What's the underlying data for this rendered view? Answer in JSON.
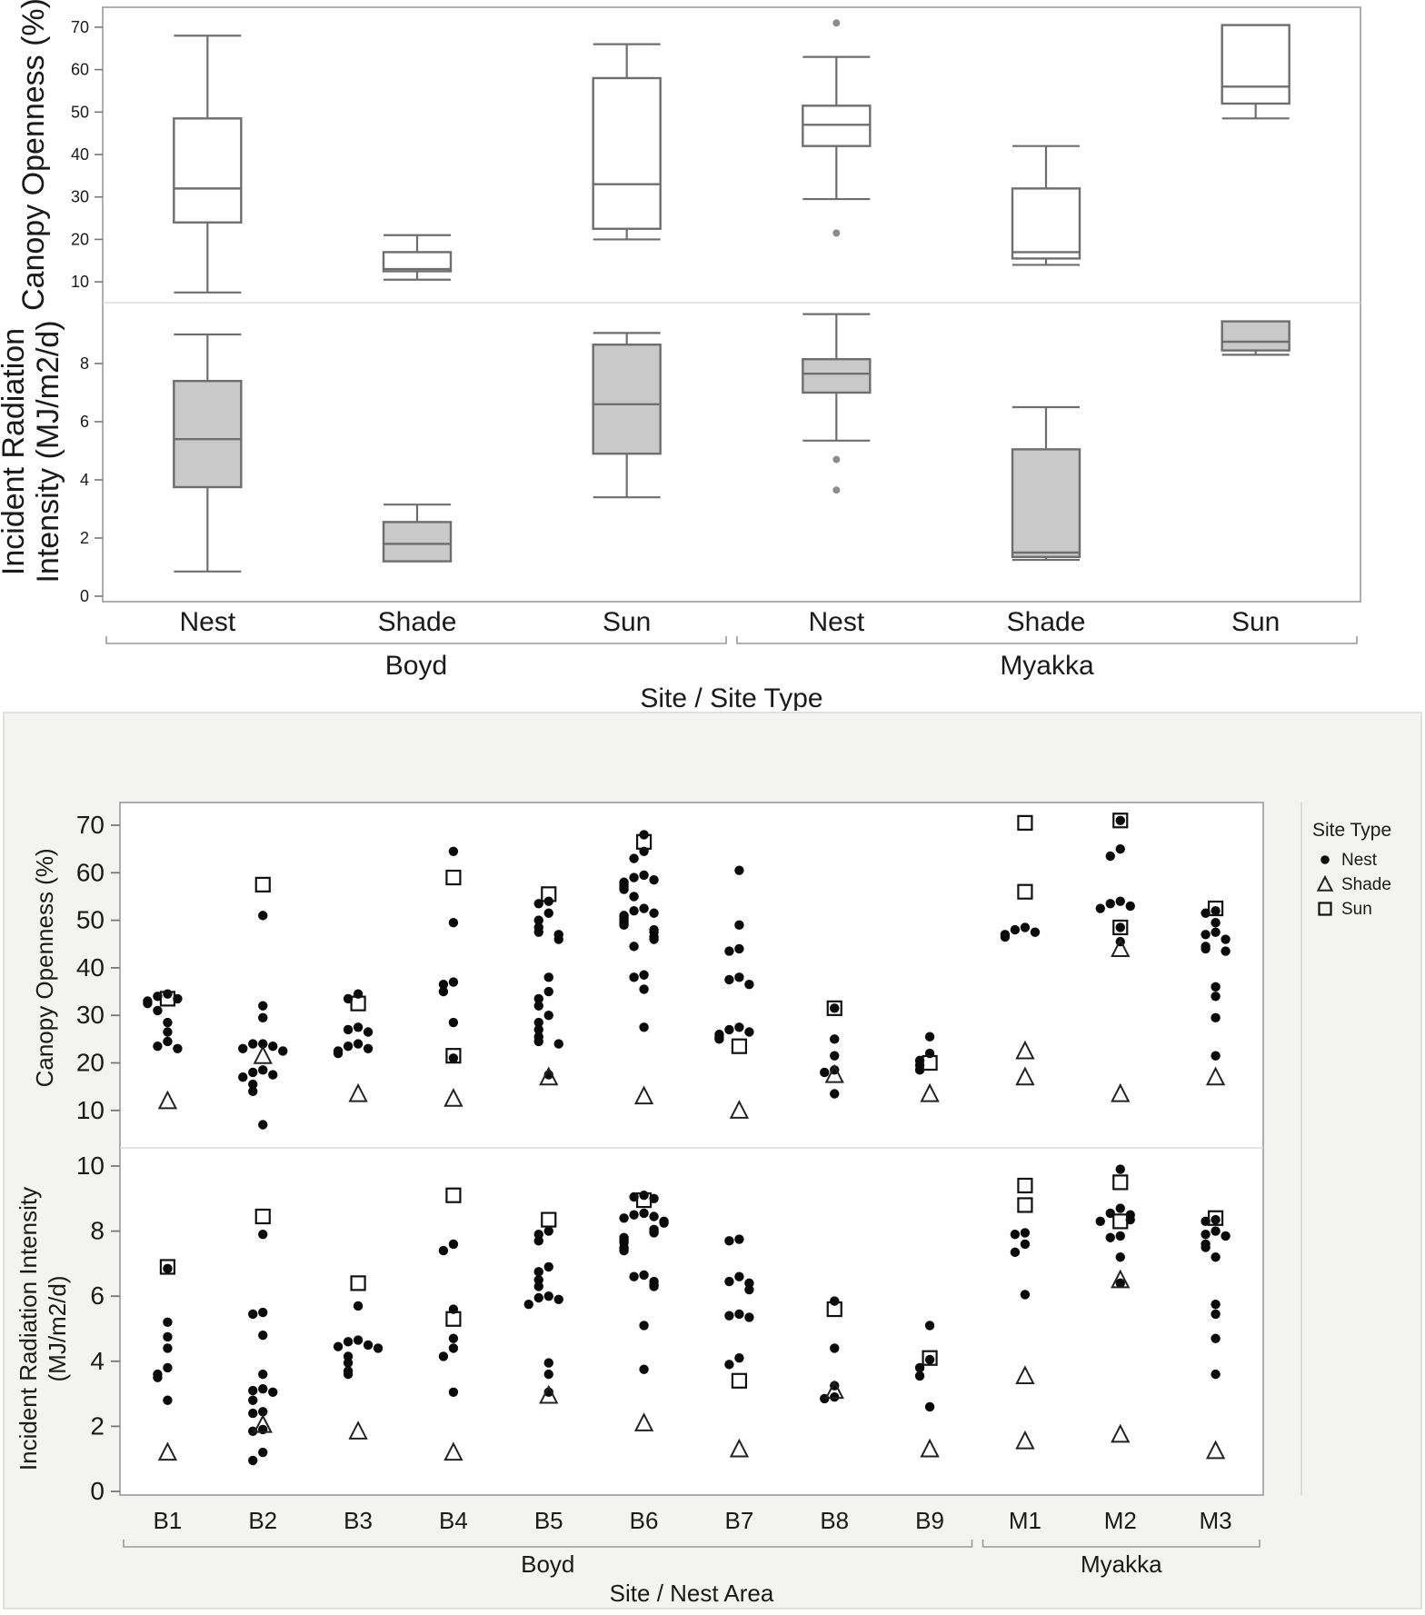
{
  "colors": {
    "plot_border": "#9a9a9a",
    "box_stroke": "#6e6e6e",
    "box_fill_white": "#ffffff",
    "box_fill_gray": "#c9c9c9",
    "row_divider": "#dcdcdc",
    "card_bg": "#f3f3f1",
    "card_border": "#d8d8d8",
    "marker_black": "#0a0a0a",
    "outlier_gray": "#8c8c8c",
    "text": "#1a1a1a"
  },
  "chart_data": [
    {
      "id": "box-plot-figure",
      "type": "box",
      "xlabel": "Site / Site Type",
      "groups": [
        {
          "label": "Boyd",
          "categories": [
            "Nest",
            "Shade",
            "Sun"
          ]
        },
        {
          "label": "Myakka",
          "categories": [
            "Nest",
            "Shade",
            "Sun"
          ]
        }
      ],
      "panels": [
        {
          "ylabel_lines": [
            "Canopy Openness (%)"
          ],
          "yticks": [
            10,
            20,
            30,
            40,
            50,
            60,
            70
          ],
          "ylim": [
            5.1,
            74.7
          ],
          "fill": "white",
          "boxes": [
            {
              "group": "Boyd",
              "category": "Nest",
              "whisker_low": 7.5,
              "q1": 24,
              "median": 32,
              "q3": 48.5,
              "whisker_high": 68,
              "outliers": []
            },
            {
              "group": "Boyd",
              "category": "Shade",
              "whisker_low": 10.5,
              "q1": 12.5,
              "median": 13,
              "q3": 17,
              "whisker_high": 21,
              "outliers": []
            },
            {
              "group": "Boyd",
              "category": "Sun",
              "whisker_low": 20,
              "q1": 22.5,
              "median": 33,
              "q3": 58,
              "whisker_high": 66,
              "outliers": []
            },
            {
              "group": "Myakka",
              "category": "Nest",
              "whisker_low": 29.5,
              "q1": 42,
              "median": 47,
              "q3": 51.5,
              "whisker_high": 63,
              "outliers": [
                71,
                21.5
              ]
            },
            {
              "group": "Myakka",
              "category": "Shade",
              "whisker_low": 14,
              "q1": 15.5,
              "median": 17,
              "q3": 32,
              "whisker_high": 42,
              "outliers": []
            },
            {
              "group": "Myakka",
              "category": "Sun",
              "whisker_low": 48.5,
              "q1": 52,
              "median": 56,
              "q3": 70.5,
              "whisker_high": null,
              "outliers": []
            }
          ]
        },
        {
          "ylabel_lines": [
            "Incident Radiation",
            "Intensity (MJ/m2/d)"
          ],
          "yticks": [
            0,
            2,
            4,
            6,
            8
          ],
          "ylim": [
            -0.2,
            10.1
          ],
          "fill": "gray",
          "boxes": [
            {
              "group": "Boyd",
              "category": "Nest",
              "whisker_low": 0.85,
              "q1": 3.75,
              "median": 5.4,
              "q3": 7.4,
              "whisker_high": 9.0,
              "outliers": []
            },
            {
              "group": "Boyd",
              "category": "Shade",
              "whisker_low": null,
              "q1": 1.2,
              "median": 1.8,
              "q3": 2.55,
              "whisker_high": 3.15,
              "outliers": []
            },
            {
              "group": "Boyd",
              "category": "Sun",
              "whisker_low": 3.4,
              "q1": 4.9,
              "median": 6.6,
              "q3": 8.65,
              "whisker_high": 9.05,
              "outliers": []
            },
            {
              "group": "Myakka",
              "category": "Nest",
              "whisker_low": 5.35,
              "q1": 7.0,
              "median": 7.65,
              "q3": 8.15,
              "whisker_high": 9.7,
              "outliers": [
                4.7,
                3.65
              ]
            },
            {
              "group": "Myakka",
              "category": "Shade",
              "whisker_low": 1.25,
              "q1": 1.35,
              "median": 1.5,
              "q3": 5.05,
              "whisker_high": 6.5,
              "outliers": []
            },
            {
              "group": "Myakka",
              "category": "Sun",
              "whisker_low": 8.3,
              "q1": 8.45,
              "median": 8.75,
              "q3": 9.45,
              "whisker_high": null,
              "outliers": []
            }
          ]
        }
      ]
    },
    {
      "id": "dot-plot-figure",
      "type": "scatter",
      "xlabel": "Site / Nest Area",
      "groups": [
        {
          "label": "Boyd",
          "categories": [
            "B1",
            "B2",
            "B3",
            "B4",
            "B5",
            "B6",
            "B7",
            "B8",
            "B9"
          ]
        },
        {
          "label": "Myakka",
          "categories": [
            "M1",
            "M2",
            "M3"
          ]
        }
      ],
      "legend": {
        "title": "Site Type",
        "items": [
          {
            "label": "Nest",
            "marker": "dot"
          },
          {
            "label": "Shade",
            "marker": "triangle"
          },
          {
            "label": "Sun",
            "marker": "square"
          }
        ]
      },
      "panels": [
        {
          "ylabel_lines": [
            "Canopy Openness (%)"
          ],
          "yticks": [
            10,
            20,
            30,
            40,
            50,
            60,
            70
          ],
          "ylim": [
            2,
            75
          ],
          "points": {
            "B1": {
              "nest": [
                34.5,
                34,
                33.5,
                33,
                32.5,
                31,
                28.5,
                26.5,
                24.5,
                23.5,
                23
              ],
              "shade": [
                12
              ],
              "sun": [
                33.5
              ]
            },
            "B2": {
              "nest": [
                51,
                32,
                29.5,
                24,
                24,
                23.5,
                23,
                22.5,
                18.5,
                18,
                17.5,
                17,
                15.5,
                14,
                7
              ],
              "shade": [
                21.5
              ],
              "sun": [
                57.5
              ]
            },
            "B3": {
              "nest": [
                34.5,
                33.5,
                27.5,
                27,
                26.5,
                24,
                23.5,
                23,
                22.5,
                22
              ],
              "shade": [
                13.5
              ],
              "sun": [
                32.5
              ]
            },
            "B4": {
              "nest": [
                64.5,
                49.5,
                37,
                36.5,
                35,
                28.5,
                21
              ],
              "shade": [
                12.5
              ],
              "sun": [
                59,
                21.5
              ]
            },
            "B5": {
              "nest": [
                54,
                53.5,
                51.5,
                50,
                48.5,
                47.5,
                47,
                46,
                38,
                35,
                33.5,
                32,
                30,
                28.5,
                27,
                25.5,
                24.5,
                24,
                17.5
              ],
              "shade": [
                17
              ],
              "sun": [
                55.5
              ]
            },
            "B6": {
              "nest": [
                68,
                64.5,
                63,
                59.5,
                59,
                58.5,
                58,
                57.5,
                57,
                56.5,
                55,
                52.5,
                52,
                51.5,
                51,
                50.5,
                50,
                49.5,
                49,
                48,
                47.5,
                46.5,
                46,
                44.5,
                38.5,
                38,
                35.5,
                27.5
              ],
              "shade": [
                13
              ],
              "sun": [
                66.5
              ]
            },
            "B7": {
              "nest": [
                60.5,
                49,
                44,
                43.5,
                38,
                37.5,
                36.5,
                27.5,
                27,
                26.5,
                26,
                25.5,
                25
              ],
              "shade": [
                10
              ],
              "sun": [
                23.5
              ]
            },
            "B8": {
              "nest": [
                31.5,
                25,
                21.5,
                18.5,
                18,
                13.5
              ],
              "shade": [
                17.5
              ],
              "sun": [
                31.5
              ]
            },
            "B9": {
              "nest": [
                25.5,
                22,
                20.5,
                19.5,
                18.5
              ],
              "shade": [
                13.5
              ],
              "sun": [
                20
              ]
            },
            "M1": {
              "nest": [
                48.5,
                48,
                47.5,
                47,
                46.5
              ],
              "shade": [
                22.5,
                17
              ],
              "sun": [
                70.5,
                56
              ]
            },
            "M2": {
              "nest": [
                71,
                65,
                63.5,
                54,
                53.5,
                53,
                52.5,
                48.5,
                45.5
              ],
              "shade": [
                44,
                13.5
              ],
              "sun": [
                71,
                48.5
              ]
            },
            "M3": {
              "nest": [
                52,
                51.5,
                49.5,
                47.5,
                47,
                46,
                44.5,
                44,
                43.5,
                36,
                34,
                29.5,
                21.5
              ],
              "shade": [
                17
              ],
              "sun": [
                52.5
              ]
            }
          }
        },
        {
          "ylabel_lines": [
            "Incident Radiation Intensity",
            "(MJ/m2/d)"
          ],
          "yticks": [
            0,
            2,
            4,
            6,
            8,
            10
          ],
          "ylim": [
            0,
            10.6
          ],
          "points": {
            "B1": {
              "nest": [
                6.85,
                5.2,
                4.75,
                4.4,
                3.8,
                3.6,
                3.5,
                2.8
              ],
              "shade": [
                1.2
              ],
              "sun": [
                6.9
              ]
            },
            "B2": {
              "nest": [
                7.9,
                5.5,
                5.45,
                4.8,
                3.6,
                3.15,
                3.1,
                3.05,
                2.8,
                2.45,
                2.4,
                1.9,
                1.85,
                1.2,
                0.95
              ],
              "shade": [
                2.05
              ],
              "sun": [
                8.45
              ]
            },
            "B3": {
              "nest": [
                5.7,
                4.65,
                4.6,
                4.5,
                4.45,
                4.4,
                4.15,
                3.95,
                3.7,
                3.6
              ],
              "shade": [
                1.85
              ],
              "sun": [
                6.4
              ]
            },
            "B4": {
              "nest": [
                7.6,
                7.4,
                5.6,
                4.7,
                4.4,
                4.15,
                3.05
              ],
              "shade": [
                1.2
              ],
              "sun": [
                9.1,
                5.3
              ]
            },
            "B5": {
              "nest": [
                8.0,
                7.9,
                7.7,
                6.9,
                6.75,
                6.5,
                6.3,
                6.0,
                5.95,
                5.9,
                5.75,
                3.95,
                3.6,
                3.05
              ],
              "shade": [
                2.95
              ],
              "sun": [
                8.35
              ]
            },
            "B6": {
              "nest": [
                9.1,
                9.05,
                9.0,
                8.55,
                8.5,
                8.45,
                8.4,
                8.3,
                8.25,
                8.05,
                8.0,
                7.95,
                7.8,
                7.75,
                7.7,
                7.65,
                7.5,
                7.45,
                7.4,
                6.65,
                6.6,
                6.45,
                6.35,
                6.3,
                5.1,
                3.75
              ],
              "shade": [
                2.1
              ],
              "sun": [
                8.95
              ]
            },
            "B7": {
              "nest": [
                7.75,
                7.7,
                6.6,
                6.45,
                6.4,
                6.2,
                5.45,
                5.4,
                5.35,
                4.1,
                3.9
              ],
              "shade": [
                1.3
              ],
              "sun": [
                3.4
              ]
            },
            "B8": {
              "nest": [
                5.85,
                4.4,
                3.25,
                2.9,
                2.85
              ],
              "shade": [
                3.1
              ],
              "sun": [
                5.6
              ]
            },
            "B9": {
              "nest": [
                5.1,
                4.05,
                3.8,
                3.55,
                2.6
              ],
              "shade": [
                1.3
              ],
              "sun": [
                4.1
              ]
            },
            "M1": {
              "nest": [
                7.95,
                7.9,
                7.6,
                7.35,
                6.05
              ],
              "shade": [
                3.55,
                1.55
              ],
              "sun": [
                9.4,
                8.8
              ]
            },
            "M2": {
              "nest": [
                9.9,
                8.7,
                8.55,
                8.5,
                8.35,
                8.3,
                7.85,
                7.8,
                7.2,
                6.4
              ],
              "shade": [
                6.5,
                1.75
              ],
              "sun": [
                9.5,
                8.3
              ]
            },
            "M3": {
              "nest": [
                8.35,
                8.3,
                8.0,
                7.9,
                7.85,
                7.6,
                7.5,
                7.2,
                5.75,
                5.45,
                4.7,
                3.6
              ],
              "shade": [
                1.25
              ],
              "sun": [
                8.4
              ]
            }
          }
        }
      ]
    }
  ]
}
